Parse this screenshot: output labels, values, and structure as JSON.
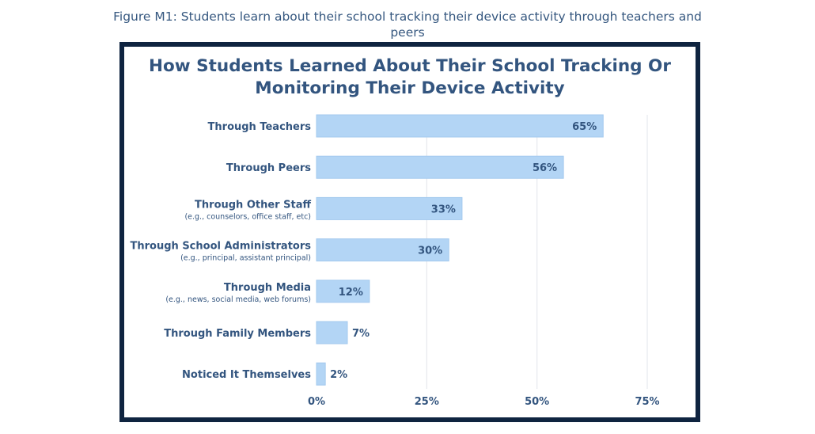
{
  "figure_caption": "Figure M1: Students learn about their school tracking their device activity through teachers and peers",
  "colors": {
    "bar": "#b3d5f5",
    "bar_border": "#a3c9ee",
    "text": "#33557f",
    "grid": "#e6e9ee",
    "frame": "#0f2440"
  },
  "chart_data": {
    "type": "bar",
    "orientation": "horizontal",
    "title": "How Students Learned About Their School Tracking Or Monitoring Their Device Activity",
    "categories": [
      {
        "label": "Through Teachers",
        "sublabel": ""
      },
      {
        "label": "Through Peers",
        "sublabel": ""
      },
      {
        "label": "Through Other Staff",
        "sublabel": "(e.g., counselors, office staff, etc)"
      },
      {
        "label": "Through School Administrators",
        "sublabel": "(e.g., principal, assistant principal)"
      },
      {
        "label": "Through Media",
        "sublabel": "(e.g., news, social media, web forums)"
      },
      {
        "label": "Through Family Members",
        "sublabel": ""
      },
      {
        "label": "Noticed It Themselves",
        "sublabel": ""
      }
    ],
    "values": [
      65,
      56,
      33,
      30,
      12,
      7,
      2
    ],
    "value_labels": [
      "65%",
      "56%",
      "33%",
      "30%",
      "12%",
      "7%",
      "2%"
    ],
    "xticks": [
      0,
      25,
      50,
      75
    ],
    "xtick_labels": [
      "0%",
      "25%",
      "50%",
      "75%"
    ],
    "xlim": [
      0,
      75
    ],
    "grid": true,
    "legend": "none"
  }
}
